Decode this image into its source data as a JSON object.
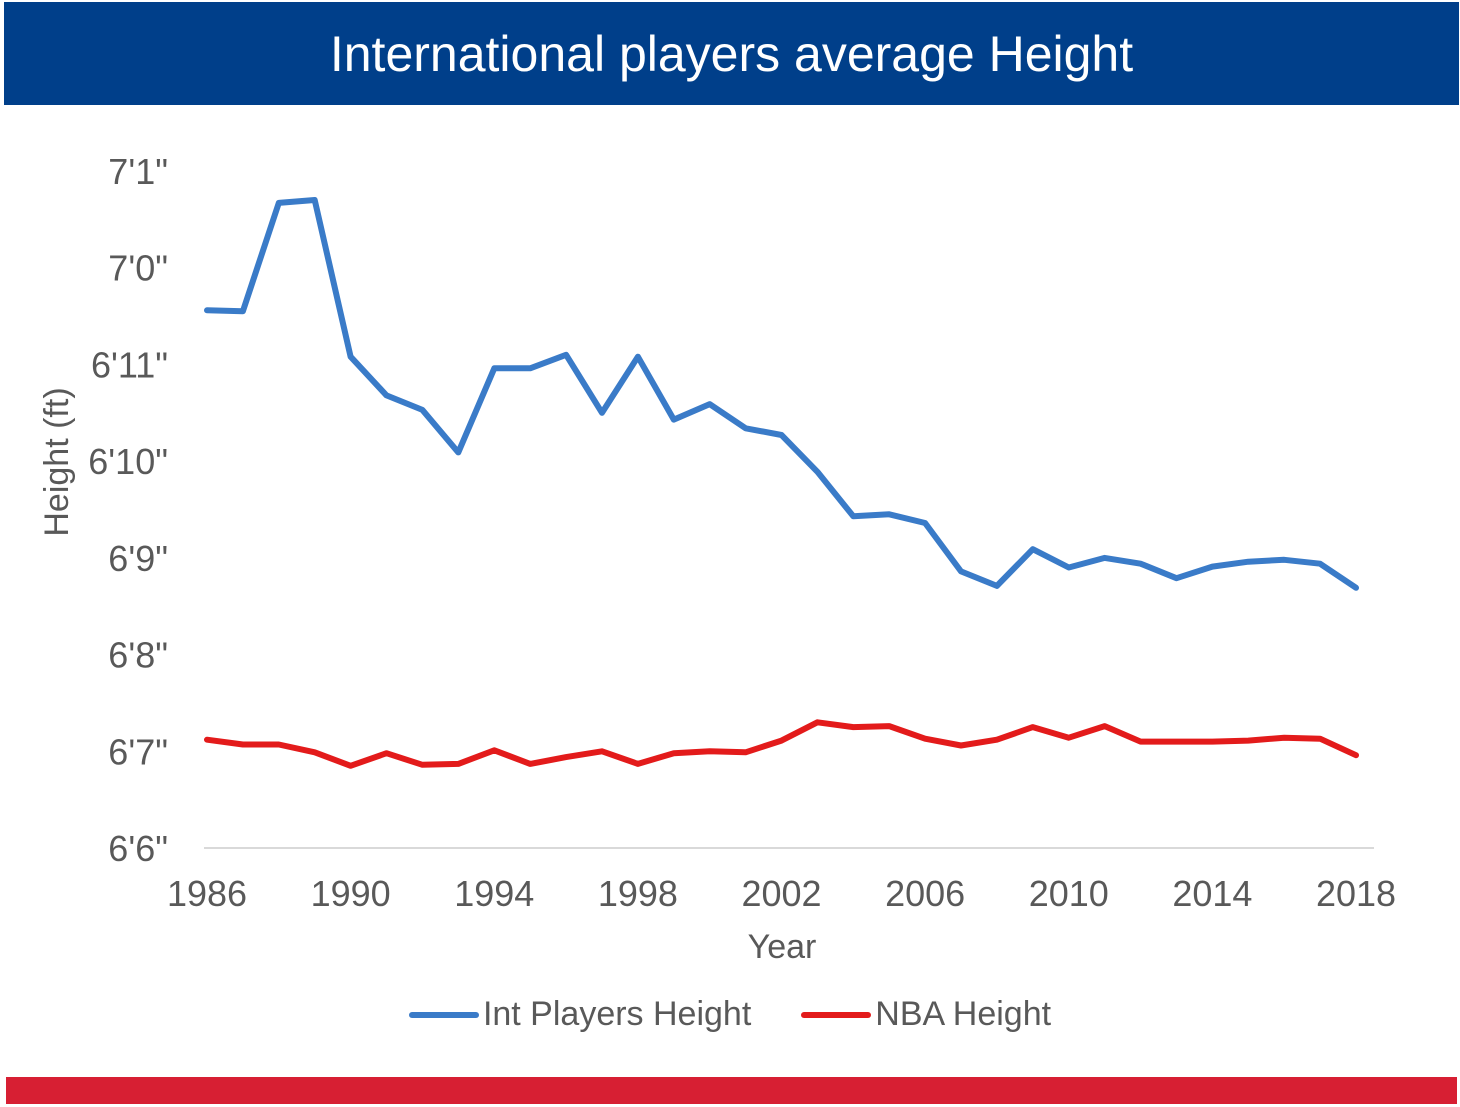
{
  "chart_data": {
    "type": "line",
    "title": "International players average Height",
    "xlabel": "Year",
    "ylabel": "Height (ft)",
    "y_unit": "inches",
    "ylim": [
      78,
      85
    ],
    "xlim": [
      1986,
      2018
    ],
    "x_ticks": [
      1986,
      1990,
      1994,
      1998,
      2002,
      2006,
      2010,
      2014,
      2018
    ],
    "y_ticks": [
      {
        "value": 78,
        "label": "6'6\""
      },
      {
        "value": 79,
        "label": "6'7\""
      },
      {
        "value": 80,
        "label": "6'8\""
      },
      {
        "value": 81,
        "label": "6'9\""
      },
      {
        "value": 82,
        "label": "6'10\""
      },
      {
        "value": 83,
        "label": "6'11\""
      },
      {
        "value": 84,
        "label": "7'0\""
      },
      {
        "value": 85,
        "label": "7'1\""
      }
    ],
    "grid": false,
    "legend_position": "bottom",
    "x": [
      1986,
      1987,
      1988,
      1989,
      1990,
      1991,
      1992,
      1993,
      1994,
      1995,
      1996,
      1997,
      1998,
      1999,
      2000,
      2001,
      2002,
      2003,
      2004,
      2005,
      2006,
      2007,
      2008,
      2009,
      2010,
      2011,
      2012,
      2013,
      2014,
      2015,
      2016,
      2017,
      2018
    ],
    "series": [
      {
        "name": "Int Players Height",
        "color": "#3a7bc8",
        "values": [
          83.56,
          83.55,
          84.67,
          84.7,
          83.08,
          82.68,
          82.53,
          82.09,
          82.96,
          82.96,
          83.1,
          82.5,
          83.08,
          82.43,
          82.59,
          82.34,
          82.27,
          81.89,
          81.43,
          81.45,
          81.36,
          80.86,
          80.71,
          81.09,
          80.9,
          81.0,
          80.94,
          80.79,
          80.91,
          80.96,
          80.98,
          80.94,
          80.69
        ]
      },
      {
        "name": "NBA Height",
        "color": "#e31b1b",
        "values": [
          79.12,
          79.07,
          79.07,
          78.99,
          78.85,
          78.98,
          78.86,
          78.87,
          79.01,
          78.87,
          78.94,
          79.0,
          78.87,
          78.98,
          79.0,
          78.99,
          79.11,
          79.3,
          79.25,
          79.26,
          79.13,
          79.06,
          79.12,
          79.25,
          79.14,
          79.26,
          79.1,
          79.1,
          79.1,
          79.11,
          79.14,
          79.13,
          78.96
        ]
      }
    ]
  }
}
